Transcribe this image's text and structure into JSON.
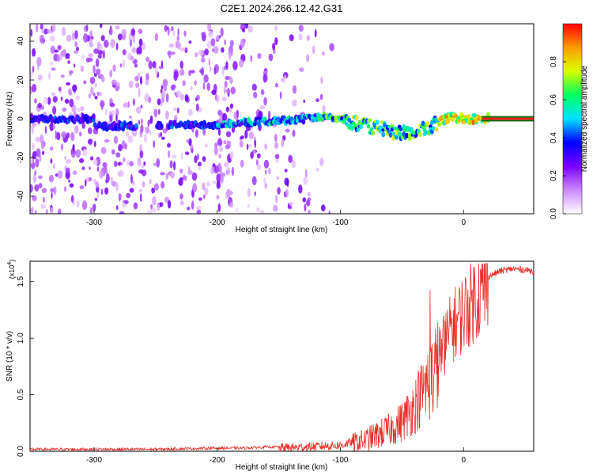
{
  "title": "C2E1.2024.266.12.42.G31",
  "chart_data": [
    {
      "type": "heatmap",
      "xlabel": "Height of straight line (km)",
      "ylabel": "Frequency (Hz)",
      "xlim": [
        -352,
        57
      ],
      "ylim": [
        -49,
        49
      ],
      "xticks": [
        -300,
        -200,
        -100,
        0
      ],
      "yticks": [
        -40,
        -20,
        0,
        20,
        40
      ],
      "colorbar": {
        "label": "Normalized spectral amplitude",
        "range": [
          0.0,
          1.0
        ],
        "ticks": [
          "0.0",
          "0.2",
          "0.4",
          "0.6",
          "0.8"
        ],
        "colors": [
          "#ffffff",
          "#cc88ff",
          "#7a00ff",
          "#0000ff",
          "#00e0ff",
          "#00ff60",
          "#d8ff00",
          "#ff9a00",
          "#ff0000"
        ]
      },
      "ridge": [
        {
          "x": -300,
          "y": -4
        },
        {
          "x": -200,
          "y": -3
        },
        {
          "x": -150,
          "y": -1
        },
        {
          "x": -110,
          "y": 1
        },
        {
          "x": -90,
          "y": -2
        },
        {
          "x": -60,
          "y": -6
        },
        {
          "x": -40,
          "y": -8
        },
        {
          "x": -25,
          "y": -3
        },
        {
          "x": -10,
          "y": 1
        },
        {
          "x": 0,
          "y": 0
        },
        {
          "x": 15,
          "y": 0
        },
        {
          "x": 57,
          "y": 0
        }
      ]
    },
    {
      "type": "line",
      "xlabel": "Height of straight line (km)",
      "ylabel": "SNR (10 * v/v)",
      "y_multiplier": "(x10",
      "y_multiplier_exp": "4",
      "xlim": [
        -352,
        57
      ],
      "ylim": [
        0,
        1.68
      ],
      "xticks": [
        -300,
        -200,
        -100,
        0
      ],
      "yticks": [
        "0.0",
        "0.5",
        "1.0",
        "1.5"
      ],
      "ytick_values": [
        0,
        0.5,
        1.0,
        1.5
      ],
      "color": "#e8302a",
      "series": [
        {
          "x": [
            -352,
            -300,
            -250,
            -200,
            -180,
            -160,
            -140,
            -120,
            -100,
            -80,
            -60,
            -50,
            -40,
            -30,
            -25,
            -20,
            -10,
            0,
            10,
            20,
            30,
            40,
            50,
            57
          ],
          "y": [
            0.02,
            0.02,
            0.02,
            0.03,
            0.03,
            0.04,
            0.04,
            0.05,
            0.06,
            0.12,
            0.22,
            0.3,
            0.45,
            0.65,
            0.75,
            0.9,
            1.15,
            1.3,
            1.45,
            1.55,
            1.6,
            1.62,
            1.61,
            1.6
          ]
        }
      ]
    }
  ]
}
